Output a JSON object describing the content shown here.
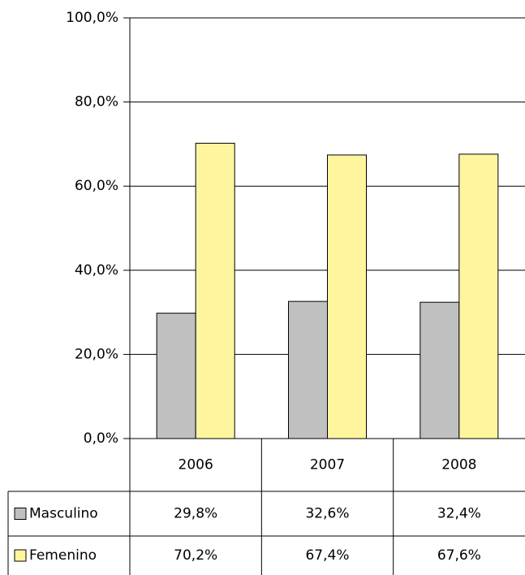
{
  "chart_data": {
    "type": "bar",
    "categories": [
      "2006",
      "2007",
      "2008"
    ],
    "series": [
      {
        "name": "Masculino",
        "color": "#c0c0c0",
        "values": [
          29.8,
          32.6,
          32.4
        ],
        "value_labels": [
          "29,8%",
          "32,6%",
          "32,4%"
        ]
      },
      {
        "name": "Femenino",
        "color": "#fff59e",
        "values": [
          70.2,
          67.4,
          67.6
        ],
        "value_labels": [
          "70,2%",
          "67,4%",
          "67,6%"
        ]
      }
    ],
    "ylim": [
      0,
      100
    ],
    "yticks": [
      {
        "value": 0,
        "label": "0,0%"
      },
      {
        "value": 20,
        "label": "20,0%"
      },
      {
        "value": 40,
        "label": "40,0%"
      },
      {
        "value": 60,
        "label": "60,0%"
      },
      {
        "value": 80,
        "label": "80,0%"
      },
      {
        "value": 100,
        "label": "100,0%"
      }
    ],
    "grid": true
  }
}
